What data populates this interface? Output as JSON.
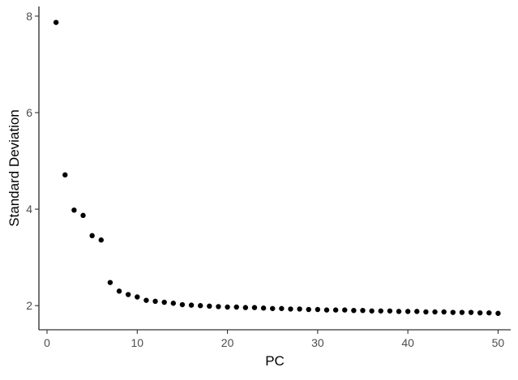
{
  "chart_data": {
    "type": "scatter",
    "xlabel": "PC",
    "ylabel": "Standard Deviation",
    "xlim": [
      -0.9,
      51.4
    ],
    "ylim": [
      1.5,
      8.2
    ],
    "xticks": [
      0,
      10,
      20,
      30,
      40,
      50
    ],
    "yticks": [
      2,
      4,
      6,
      8
    ],
    "grid": false,
    "legend": "none",
    "point_color": "#000000",
    "series": [
      {
        "x": [
          1,
          2,
          3,
          4,
          5,
          6,
          7,
          8,
          9,
          10,
          11,
          12,
          13,
          14,
          15,
          16,
          17,
          18,
          19,
          20,
          21,
          22,
          23,
          24,
          25,
          26,
          27,
          28,
          29,
          30,
          31,
          32,
          33,
          34,
          35,
          36,
          37,
          38,
          39,
          40,
          41,
          42,
          43,
          44,
          45,
          46,
          47,
          48,
          49,
          50
        ],
        "y": [
          7.87,
          4.71,
          3.98,
          3.87,
          3.45,
          3.36,
          2.48,
          2.3,
          2.23,
          2.18,
          2.11,
          2.09,
          2.07,
          2.05,
          2.02,
          2.01,
          2.0,
          1.99,
          1.98,
          1.97,
          1.97,
          1.96,
          1.96,
          1.95,
          1.94,
          1.94,
          1.93,
          1.93,
          1.92,
          1.92,
          1.91,
          1.91,
          1.91,
          1.9,
          1.9,
          1.89,
          1.89,
          1.89,
          1.88,
          1.88,
          1.88,
          1.87,
          1.87,
          1.87,
          1.86,
          1.86,
          1.86,
          1.85,
          1.85,
          1.84
        ]
      }
    ]
  }
}
